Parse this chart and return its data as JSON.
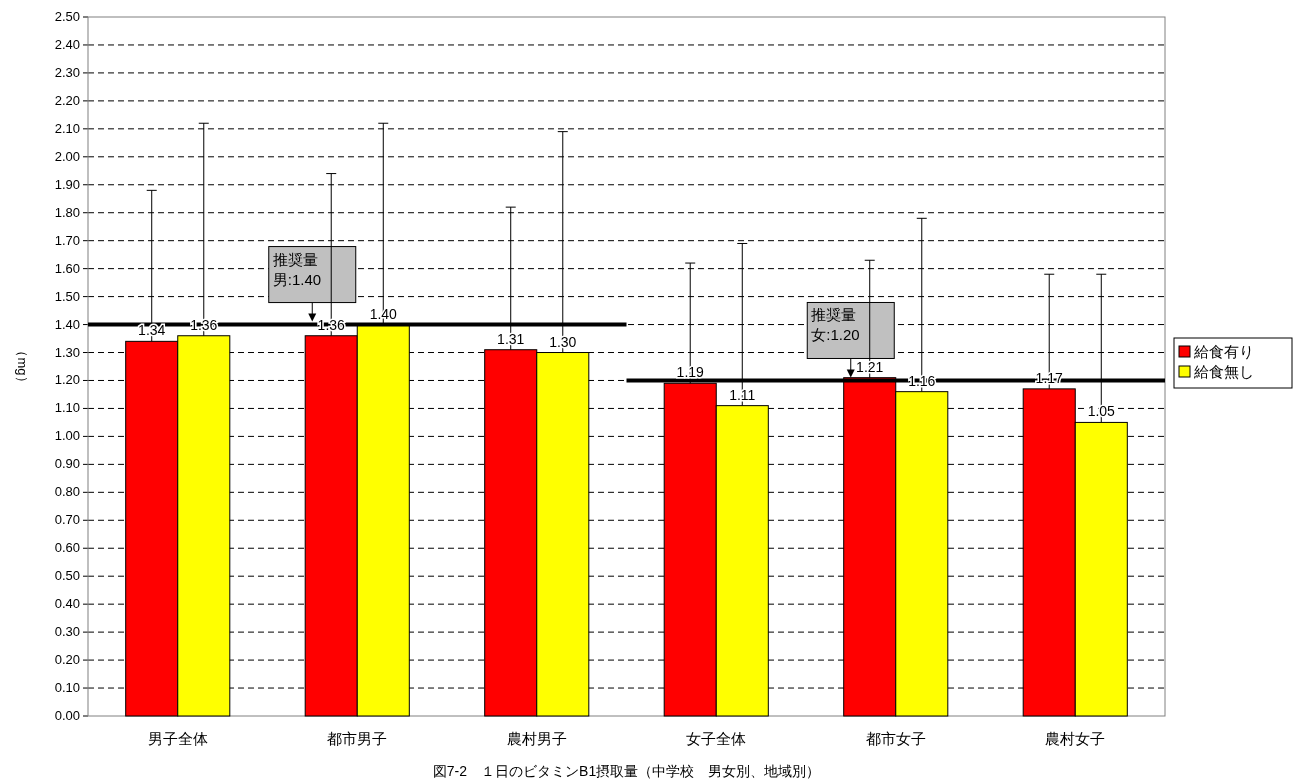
{
  "chart_data": {
    "type": "bar",
    "title": "図7-2　１日のビタミンB1摂取量（中学校　男女別、地域別）",
    "ylabel": "（mg）",
    "categories": [
      "男子全体",
      "都市男子",
      "農村男子",
      "女子全体",
      "都市女子",
      "農村女子"
    ],
    "series": [
      {
        "name": "給食有り",
        "color": "#ff0000",
        "values": [
          1.34,
          1.36,
          1.31,
          1.19,
          1.21,
          1.17
        ],
        "value_labels": [
          "1.34",
          "1.36",
          "1.31",
          "1.19",
          "1.21",
          "1.17"
        ],
        "errors": [
          [
            1.34,
            1.88
          ],
          [
            1.36,
            1.94
          ],
          [
            1.31,
            1.82
          ],
          [
            1.19,
            1.62
          ],
          [
            1.21,
            1.63
          ],
          [
            1.17,
            1.58
          ]
        ]
      },
      {
        "name": "給食無し",
        "color": "#ffff00",
        "values": [
          1.36,
          1.4,
          1.3,
          1.11,
          1.16,
          1.05
        ],
        "value_labels": [
          "1.36",
          "1.40",
          "1.30",
          "1.11",
          "1.16",
          "1.05"
        ],
        "errors": [
          [
            1.36,
            2.12
          ],
          [
            1.4,
            2.12
          ],
          [
            1.3,
            2.09
          ],
          [
            1.11,
            1.69
          ],
          [
            1.16,
            1.78
          ],
          [
            1.05,
            1.58
          ]
        ]
      }
    ],
    "ylim": [
      0,
      2.5
    ],
    "yticks": [
      {
        "value": 0,
        "label": "0.00"
      },
      {
        "value": 0.1,
        "label": "0.10"
      },
      {
        "value": 0.2,
        "label": "0.20"
      },
      {
        "value": 0.3,
        "label": "0.30"
      },
      {
        "value": 0.4,
        "label": "0.40"
      },
      {
        "value": 0.5,
        "label": "0.50"
      },
      {
        "value": 0.6,
        "label": "0.60"
      },
      {
        "value": 0.7,
        "label": "0.70"
      },
      {
        "value": 0.8,
        "label": "0.80"
      },
      {
        "value": 0.9,
        "label": "0.90"
      },
      {
        "value": 1,
        "label": "1.00"
      },
      {
        "value": 1.1,
        "label": "1.10"
      },
      {
        "value": 1.2,
        "label": "1.20"
      },
      {
        "value": 1.3,
        "label": "1.30"
      },
      {
        "value": 1.4,
        "label": "1.40"
      },
      {
        "value": 1.5,
        "label": "1.50"
      },
      {
        "value": 1.6,
        "label": "1.60"
      },
      {
        "value": 1.7,
        "label": "1.70"
      },
      {
        "value": 1.8,
        "label": "1.80"
      },
      {
        "value": 1.9,
        "label": "1.90"
      },
      {
        "value": 2,
        "label": "2.00"
      },
      {
        "value": 2.1,
        "label": "2.10"
      },
      {
        "value": 2.2,
        "label": "2.20"
      },
      {
        "value": 2.3,
        "label": "2.30"
      },
      {
        "value": 2.4,
        "label": "2.40"
      },
      {
        "value": 2.5,
        "label": "2.50"
      }
    ],
    "ref_lines": [
      {
        "axis": "y",
        "value": 1.4,
        "label": "推奨量男:1.40",
        "color": "#000000"
      },
      {
        "axis": "y",
        "value": 1.2,
        "label": "推奨量女:1.20",
        "color": "#000000"
      }
    ],
    "grid": "y",
    "legend": "right"
  }
}
